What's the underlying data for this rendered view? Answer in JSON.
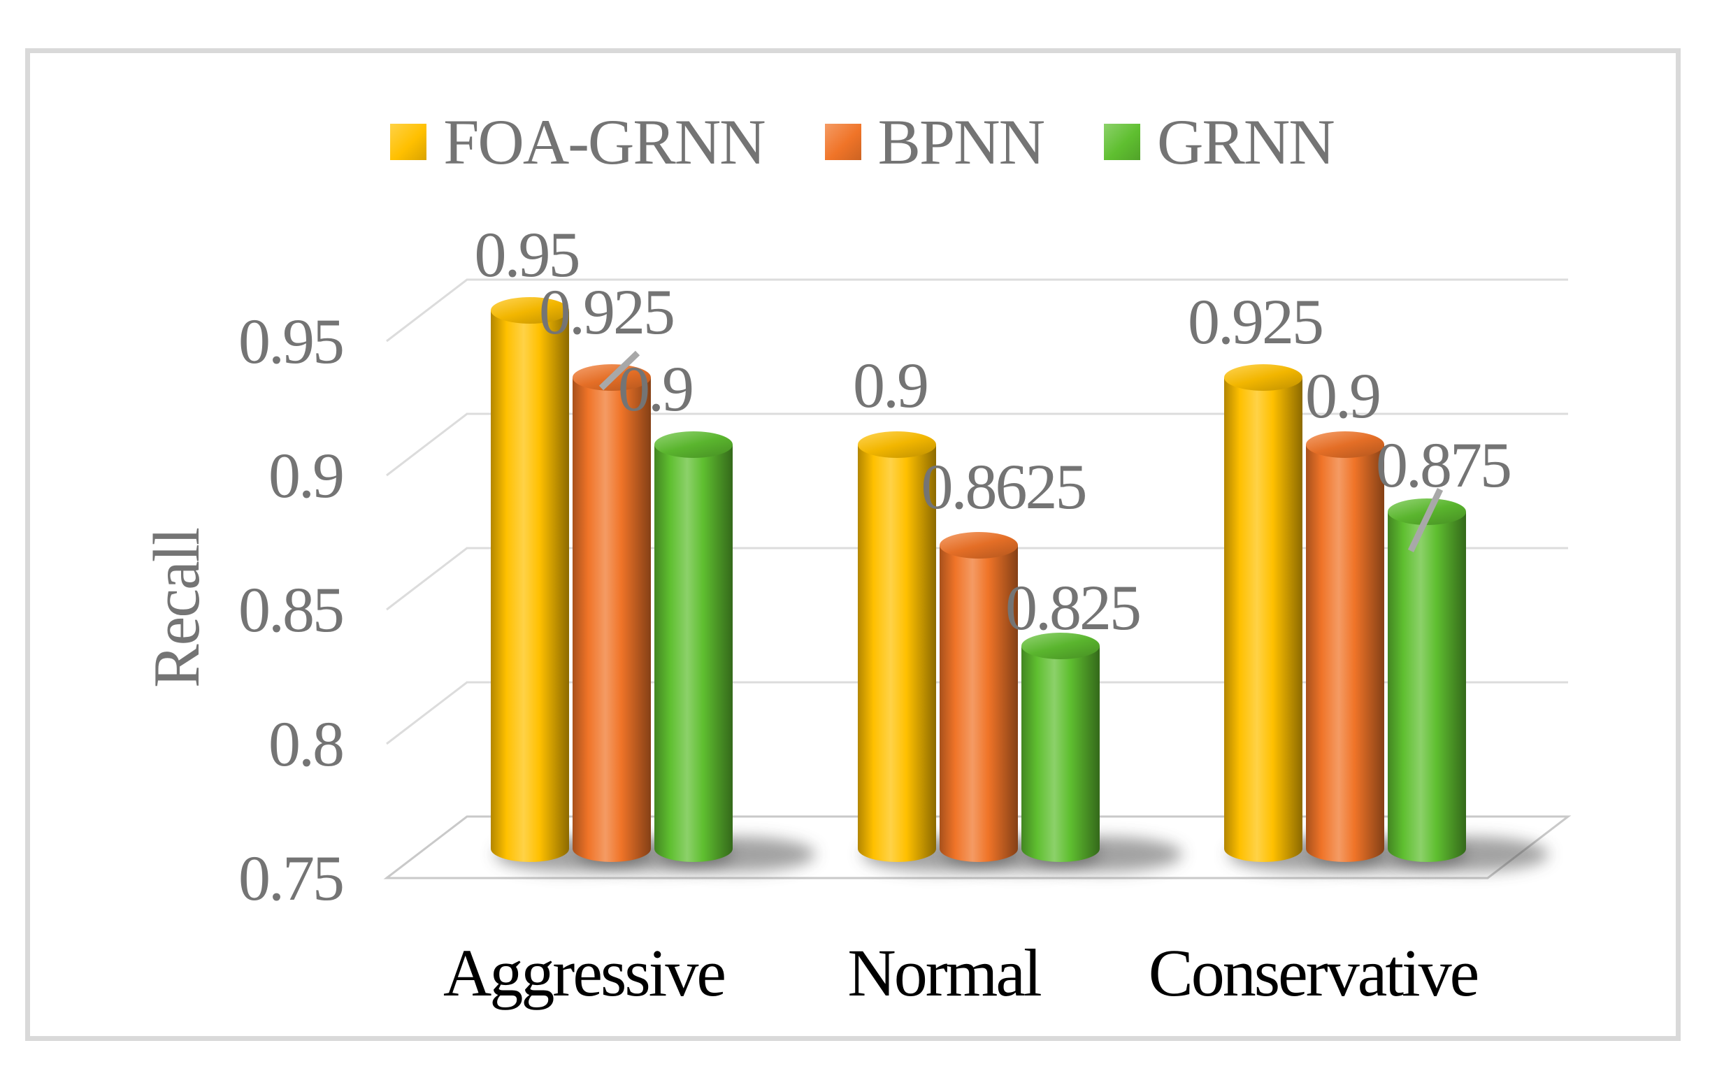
{
  "chart_data": {
    "type": "bar",
    "subtype": "3d-cylinder-clustered",
    "title": "",
    "xlabel": "",
    "ylabel": "Recall",
    "categories": [
      "Aggressive",
      "Normal",
      "Conservative"
    ],
    "series": [
      {
        "name": "FOA-GRNN",
        "color": "#FFC000",
        "values": [
          0.95,
          0.9,
          0.925
        ]
      },
      {
        "name": "BPNN",
        "color": "#F07428",
        "values": [
          0.925,
          0.8625,
          0.9
        ]
      },
      {
        "name": "GRNN",
        "color": "#5FBF30",
        "values": [
          0.9,
          0.825,
          0.875
        ]
      }
    ],
    "y_axis": {
      "min": 0.75,
      "max": 0.95,
      "step": 0.05,
      "ticks": [
        0.95,
        0.9,
        0.85,
        0.8,
        0.75
      ]
    },
    "grid": true,
    "legend_position": "top",
    "data_labels": true,
    "colors": {
      "text_gray": "#747474",
      "category_text": "#000000",
      "gridline": "#DCDCDC",
      "floor_edge": "#C9C9C9",
      "frame_border": "#D9D9D9",
      "leader_line": "#A8A8A8",
      "shadow": "#474747"
    }
  }
}
